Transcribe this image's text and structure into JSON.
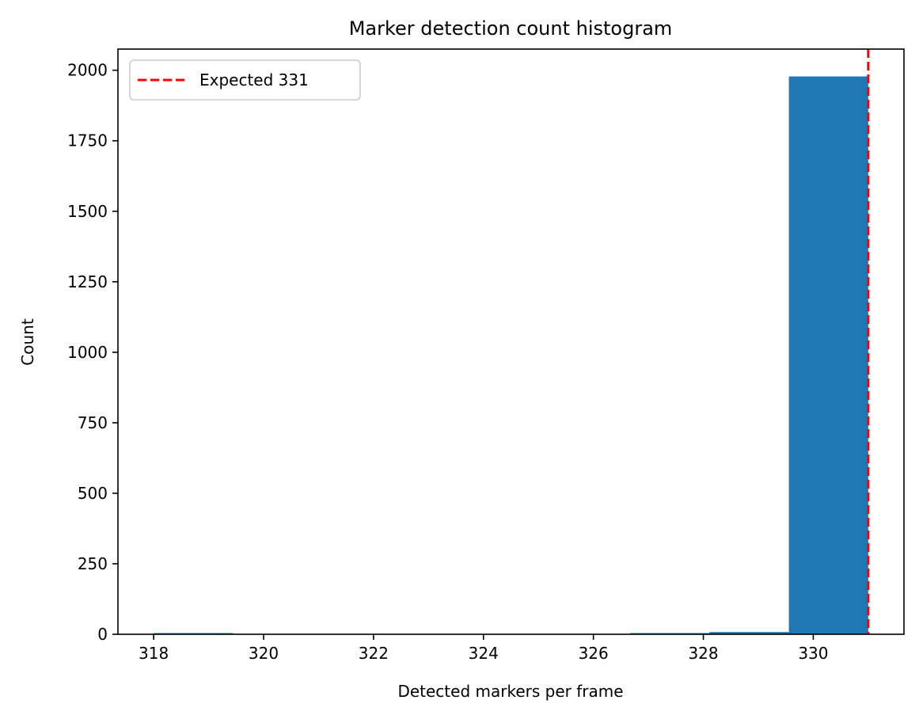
{
  "chart_data": {
    "type": "bar",
    "title": "Marker detection count histogram",
    "xlabel": "Detected markers per frame",
    "ylabel": "Count",
    "xlim": [
      317.35,
      331.65
    ],
    "ylim": [
      0,
      2075
    ],
    "x_ticks": [
      318,
      320,
      322,
      324,
      326,
      328,
      330
    ],
    "y_ticks": [
      0,
      250,
      500,
      750,
      1000,
      1250,
      1500,
      1750,
      2000
    ],
    "bins": [
      {
        "left": 318.0,
        "right": 319.444,
        "count": 1
      },
      {
        "left": 319.444,
        "right": 320.889,
        "count": 0
      },
      {
        "left": 320.889,
        "right": 322.333,
        "count": 0
      },
      {
        "left": 322.333,
        "right": 323.778,
        "count": 0
      },
      {
        "left": 323.778,
        "right": 325.222,
        "count": 0
      },
      {
        "left": 325.222,
        "right": 326.667,
        "count": 0
      },
      {
        "left": 326.667,
        "right": 328.111,
        "count": 4
      },
      {
        "left": 328.111,
        "right": 329.556,
        "count": 8
      },
      {
        "left": 329.556,
        "right": 331.0,
        "count": 1978
      }
    ],
    "bar_color": "#1f77b4",
    "reference_line": {
      "x": 331,
      "color": "#ff0000",
      "style": "dashed",
      "label": "Expected 331"
    },
    "legend": {
      "position": "top-left",
      "entries": [
        "Expected 331"
      ]
    },
    "grid": false
  }
}
